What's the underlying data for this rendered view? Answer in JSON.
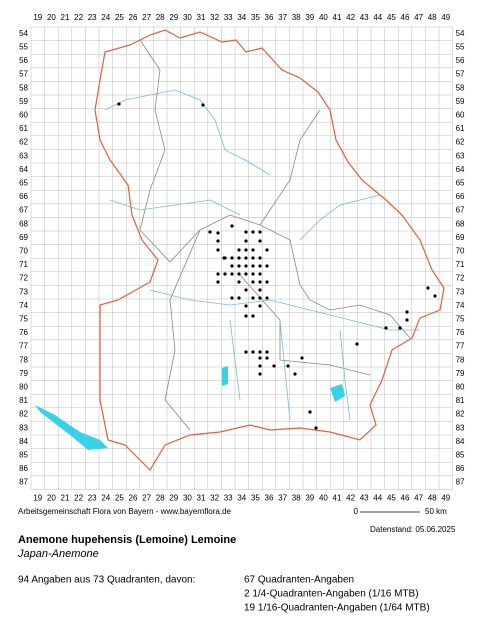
{
  "map": {
    "columns": [
      "19",
      "20",
      "21",
      "22",
      "23",
      "24",
      "25",
      "26",
      "27",
      "28",
      "29",
      "30",
      "31",
      "32",
      "33",
      "34",
      "35",
      "36",
      "37",
      "38",
      "39",
      "40",
      "41",
      "42",
      "43",
      "44",
      "45",
      "46",
      "47",
      "48",
      "49"
    ],
    "rows": [
      "54",
      "55",
      "56",
      "57",
      "58",
      "59",
      "60",
      "61",
      "62",
      "63",
      "64",
      "65",
      "66",
      "67",
      "68",
      "69",
      "70",
      "71",
      "72",
      "73",
      "74",
      "75",
      "76",
      "77",
      "78",
      "79",
      "80",
      "81",
      "82",
      "83",
      "84",
      "85",
      "86",
      "87"
    ],
    "credit": "Arbeitsgemeinschaft Flora von Bayern - www.bayernflora.de",
    "scale_start": "0",
    "scale_end": "50 km",
    "date": "Datenstand: 05.06.2025",
    "title": "Anemone hupehensis (Lemoine) Lemoine",
    "common_name": "Japan-Anemone",
    "summary": "94 Angaben aus 73 Quadranten, davon:",
    "details": [
      "67 Quadranten-Angaben",
      "2 1/4-Quadranten-Angaben (1/16 MTB)",
      "19 1/16-Quadranten-Angaben (1/64 MTB)"
    ]
  }
}
